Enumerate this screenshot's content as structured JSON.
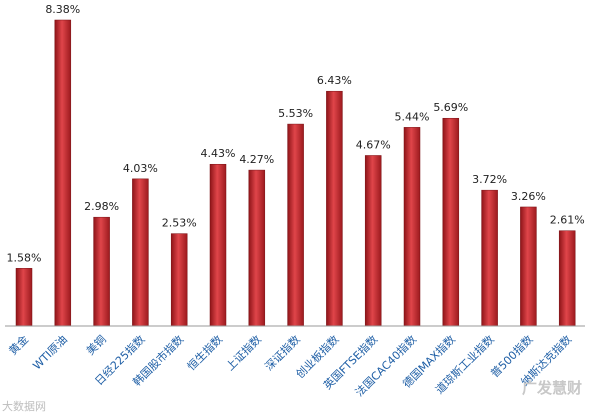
{
  "chart_data": {
    "type": "bar",
    "categories": [
      "黄金",
      "WTI原油",
      "美铜",
      "日经225指数",
      "韩国股市指数",
      "恒生指数",
      "上证指数",
      "深证指数",
      "创业板指数",
      "英国FTSE指数",
      "法国CAC40指数",
      "德国MAX指数",
      "道琼斯工业指数",
      "普500指数",
      "纳斯达克指数"
    ],
    "values": [
      1.58,
      8.38,
      2.98,
      4.03,
      2.53,
      4.43,
      4.27,
      5.53,
      6.43,
      4.67,
      5.44,
      5.69,
      3.72,
      3.26,
      2.61
    ],
    "data_labels": [
      "1.58%",
      "8.38%",
      "2.98%",
      "4.03%",
      "2.53%",
      "4.43%",
      "4.27%",
      "5.53%",
      "6.43%",
      "4.67%",
      "5.44%",
      "5.69%",
      "3.72%",
      "3.26%",
      "2.61%"
    ],
    "ylim": [
      0,
      8.38
    ],
    "grid": false,
    "bar_color": "#c0282d",
    "label_color": "#1f5fa6"
  },
  "watermark": {
    "left": "大数据网",
    "right": "广发慧财"
  }
}
